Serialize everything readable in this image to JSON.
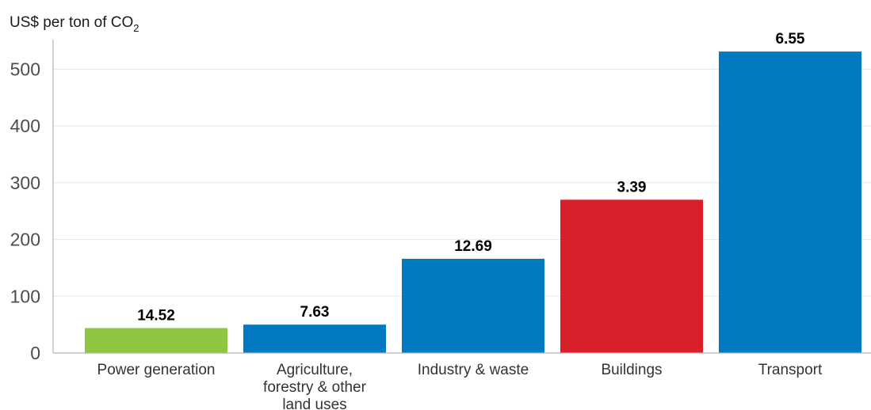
{
  "chart_data": {
    "type": "bar",
    "ylabel": "US$ per ton of CO",
    "ylabel_subscript": "2",
    "categories": [
      "Power generation",
      "Agriculture, forestry & other land uses",
      "Industry & waste",
      "Buildings",
      "Transport"
    ],
    "category_lines": [
      [
        "Power generation"
      ],
      [
        "Agriculture,",
        "forestry & other",
        "land uses"
      ],
      [
        "Industry & waste"
      ],
      [
        "Buildings"
      ],
      [
        "Transport"
      ]
    ],
    "values": [
      44,
      50,
      166,
      270,
      531
    ],
    "data_labels": [
      "14.52",
      "7.63",
      "12.69",
      "3.39",
      "6.55"
    ],
    "colors": [
      "#8dc63f",
      "#0279c0",
      "#0279c0",
      "#d9202a",
      "#0279c0"
    ],
    "ylim": [
      0,
      580
    ],
    "yticks": [
      0,
      100,
      200,
      300,
      400,
      500
    ],
    "grid": true
  }
}
